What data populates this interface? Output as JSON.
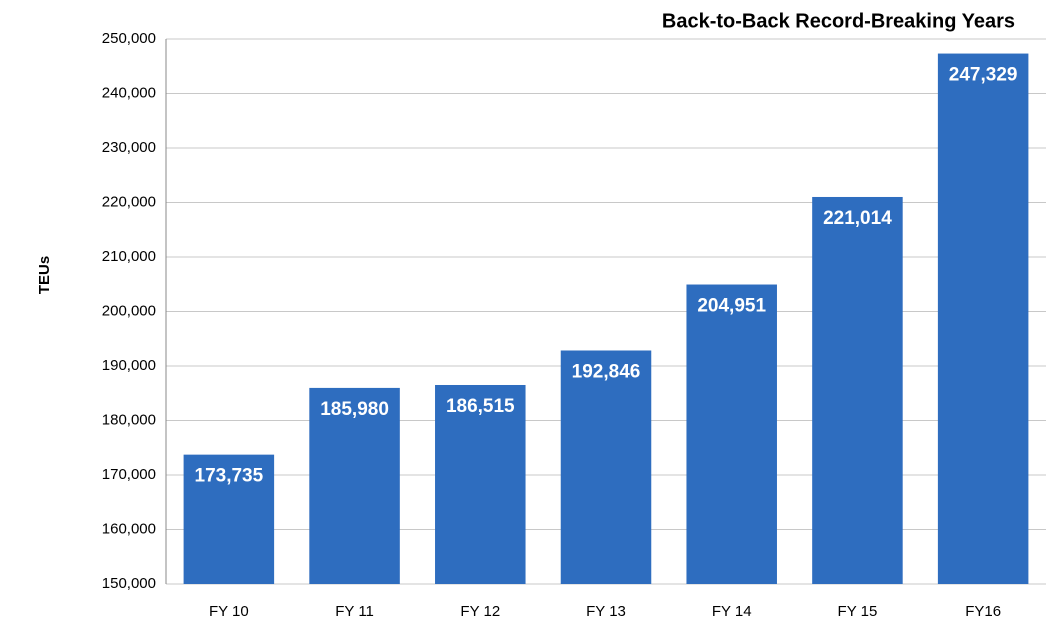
{
  "chart_data": {
    "type": "bar",
    "title": "Back-to-Back Record-Breaking Years",
    "y_label": "TEUs",
    "categories": [
      "FY 10",
      "FY 11",
      "FY 12",
      "FY 13",
      "FY 14",
      "FY 15",
      "FY16"
    ],
    "values": [
      173735,
      185980,
      186515,
      192846,
      204951,
      221014,
      247329
    ],
    "value_labels": [
      "173,735",
      "185,980",
      "186,515",
      "192,846",
      "204,951",
      "221,014",
      "247,329"
    ],
    "color": "#2e6dbf",
    "ylim": [
      150000,
      250000
    ],
    "yticks": [
      {
        "value": 150000,
        "label": "150,000"
      },
      {
        "value": 160000,
        "label": "160,000"
      },
      {
        "value": 170000,
        "label": "170,000"
      },
      {
        "value": 180000,
        "label": "180,000"
      },
      {
        "value": 190000,
        "label": "190,000"
      },
      {
        "value": 200000,
        "label": "200,000"
      },
      {
        "value": 210000,
        "label": "210,000"
      },
      {
        "value": 220000,
        "label": "220,000"
      },
      {
        "value": 230000,
        "label": "230,000"
      },
      {
        "value": 240000,
        "label": "240,000"
      },
      {
        "value": 250000,
        "label": "250,000"
      }
    ],
    "grid": true
  }
}
